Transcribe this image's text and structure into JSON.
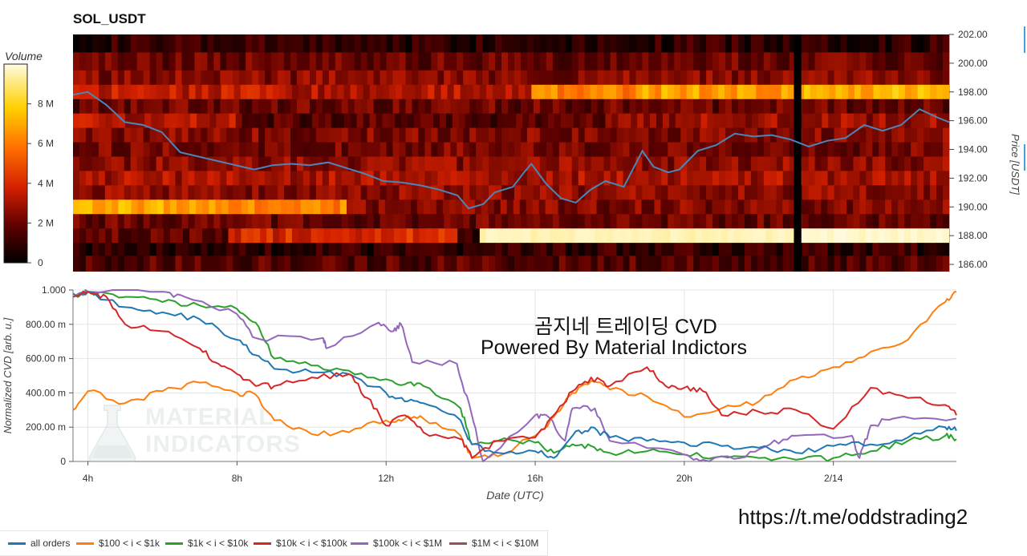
{
  "header": {
    "title": "SOL_USDT"
  },
  "colorbar": {
    "title": "Volume",
    "ticks": [
      "8 M",
      "6 M",
      "4 M",
      "2 M",
      "0"
    ],
    "tick_values": [
      8,
      6,
      4,
      2,
      0
    ]
  },
  "price_axis": {
    "label": "Price [USDT]",
    "ticks": [
      "202.00",
      "200.00",
      "198.00",
      "196.00",
      "194.00",
      "192.00",
      "190.00",
      "188.00",
      "186.00"
    ],
    "tick_values": [
      202,
      200,
      198,
      196,
      194,
      192,
      190,
      188,
      186
    ]
  },
  "cvd_axis": {
    "label": "Normalized CVD [arb. u.]",
    "ticks": [
      "1.000",
      "800.00 m",
      "600.00 m",
      "400.00 m",
      "200.00 m",
      "0"
    ],
    "tick_values": [
      1.0,
      0.8,
      0.6,
      0.4,
      0.2,
      0
    ]
  },
  "x_axis": {
    "label": "Date (UTC)",
    "ticks": [
      "4h",
      "8h",
      "12h",
      "16h",
      "20h",
      "2/14"
    ],
    "tick_hours": [
      4,
      8,
      12,
      16,
      20,
      24
    ]
  },
  "watermark": {
    "line1": "MATERIAL",
    "line2": "INDICATORS"
  },
  "overlay": {
    "line1": "곰지네 트레이딩 CVD",
    "line2": "Powered By Material Indictors"
  },
  "link": "https://t.me/oddstrading2",
  "colors": {
    "all": "#1f77b4",
    "b100_1k": "#ff7f0e",
    "b1k_10k": "#2ca02c",
    "b10k_100k": "#d62728",
    "b100k_1m": "#9467bd",
    "b1m_10m": "#8c564b",
    "price_line": "#4a86b8"
  },
  "legend": [
    {
      "label": "all orders",
      "color": "#1f77b4"
    },
    {
      "label": "$100 < i < $1k",
      "color": "#ff7f0e"
    },
    {
      "label": "$1k < i < $10k",
      "color": "#2ca02c"
    },
    {
      "label": "$10k < i < $100k",
      "color": "#d62728"
    },
    {
      "label": "$100k < i < $1M",
      "color": "#9467bd"
    },
    {
      "label": "$1M < i < $10M",
      "color": "#8c564b"
    }
  ],
  "chart_data": [
    {
      "type": "heatmap",
      "title": "SOL_USDT",
      "xlabel": "",
      "ylabel": "Price [USDT]",
      "x_range_hours": [
        3.6,
        27.3
      ],
      "ylim": [
        185.5,
        202.0
      ],
      "colorbar": {
        "label": "Volume",
        "range": [
          0,
          10
        ]
      },
      "bands": [
        {
          "price": 201.5,
          "segments": [
            [
              3.6,
              27.3,
              1.0
            ]
          ]
        },
        {
          "price": 200.0,
          "segments": [
            [
              3.6,
              27.3,
              2.0
            ]
          ]
        },
        {
          "price": 199.0,
          "segments": [
            [
              3.6,
              27.3,
              2.5
            ]
          ]
        },
        {
          "price": 198.0,
          "segments": [
            [
              3.6,
              9.0,
              3.5
            ],
            [
              9.0,
              16.0,
              3.2
            ],
            [
              16.0,
              19.0,
              6.2
            ],
            [
              19.0,
              23.1,
              6.8
            ],
            [
              23.2,
              27.3,
              7.2
            ]
          ]
        },
        {
          "price": 197.0,
          "segments": [
            [
              3.6,
              27.3,
              2.0
            ]
          ]
        },
        {
          "price": 196.0,
          "segments": [
            [
              3.6,
              8.0,
              3.2
            ],
            [
              8.0,
              18.0,
              1.6
            ],
            [
              18.0,
              27.3,
              2.8
            ]
          ]
        },
        {
          "price": 195.0,
          "segments": [
            [
              3.6,
              27.3,
              2.4
            ]
          ]
        },
        {
          "price": 194.0,
          "segments": [
            [
              3.6,
              27.3,
              2.2
            ]
          ]
        },
        {
          "price": 193.0,
          "segments": [
            [
              3.6,
              27.3,
              2.6
            ]
          ]
        },
        {
          "price": 192.0,
          "segments": [
            [
              3.6,
              27.3,
              3.0
            ]
          ]
        },
        {
          "price": 191.0,
          "segments": [
            [
              3.6,
              27.3,
              2.6
            ]
          ]
        },
        {
          "price": 190.0,
          "segments": [
            [
              3.6,
              7.8,
              7.0
            ],
            [
              7.8,
              11.0,
              6.2
            ],
            [
              11.0,
              27.3,
              2.4
            ]
          ]
        },
        {
          "price": 189.0,
          "segments": [
            [
              3.6,
              27.3,
              2.0
            ]
          ]
        },
        {
          "price": 188.0,
          "segments": [
            [
              3.6,
              7.8,
              1.8
            ],
            [
              7.8,
              14.0,
              4.0
            ],
            [
              14.0,
              14.6,
              1.0
            ],
            [
              14.6,
              23.2,
              9.6
            ],
            [
              23.3,
              27.3,
              9.8
            ]
          ]
        },
        {
          "price": 187.0,
          "segments": [
            [
              3.6,
              27.3,
              1.0
            ]
          ]
        },
        {
          "price": 186.2,
          "segments": [
            [
              3.6,
              27.3,
              1.6
            ]
          ]
        }
      ],
      "gaps": [
        [
          23.1,
          23.3
        ]
      ],
      "series": [
        {
          "name": "",
          "x": [
            3.6,
            4.0,
            4.5,
            5.0,
            5.5,
            6.0,
            6.5,
            7.0,
            7.5,
            8.0,
            8.5,
            9.0,
            9.5,
            10.0,
            10.5,
            11.0,
            11.5,
            12.0,
            12.5,
            13.0,
            13.5,
            14.0,
            14.3,
            14.7,
            15.0,
            15.5,
            15.8,
            16.0,
            16.4,
            16.8,
            17.2,
            17.6,
            18.0,
            18.5,
            19.0,
            19.3,
            19.7,
            20.0,
            20.5,
            21.0,
            21.5,
            22.0,
            22.5,
            23.0,
            23.5,
            24.0,
            24.5,
            25.0,
            25.5,
            26.0,
            26.5,
            27.0,
            27.3
          ],
          "y": [
            197.8,
            198.0,
            197.1,
            195.9,
            195.7,
            195.2,
            193.8,
            193.5,
            193.2,
            192.9,
            192.6,
            192.9,
            193.0,
            192.9,
            193.1,
            192.7,
            192.3,
            191.8,
            191.7,
            191.5,
            191.2,
            190.8,
            189.9,
            190.2,
            191.0,
            191.4,
            192.4,
            193.0,
            191.6,
            190.6,
            190.3,
            191.2,
            191.8,
            191.4,
            193.9,
            192.8,
            192.4,
            192.6,
            193.9,
            194.3,
            195.1,
            194.9,
            195.0,
            194.7,
            194.2,
            194.6,
            194.8,
            195.7,
            195.3,
            195.7,
            196.8,
            196.2,
            195.9
          ]
        }
      ]
    },
    {
      "type": "line",
      "title": "",
      "xlabel": "Date (UTC)",
      "ylabel": "Normalized CVD [arb. u.]",
      "x_range_hours": [
        3.6,
        27.3
      ],
      "ylim": [
        0,
        1.0
      ],
      "series": [
        {
          "name": "all orders",
          "x": [
            3.6,
            4.0,
            5.0,
            6.0,
            7.0,
            8.0,
            8.5,
            9.0,
            10.0,
            11.0,
            12.0,
            12.5,
            13.0,
            14.0,
            14.3,
            15.0,
            16.0,
            16.5,
            17.0,
            17.5,
            18.0,
            19.0,
            20.0,
            21.0,
            22.0,
            23.0,
            24.0,
            25.0,
            26.0,
            27.0,
            27.3
          ],
          "y": [
            0.98,
            0.99,
            0.9,
            0.87,
            0.83,
            0.71,
            0.62,
            0.54,
            0.52,
            0.51,
            0.4,
            0.35,
            0.34,
            0.24,
            0.1,
            0.05,
            0.06,
            0.02,
            0.15,
            0.2,
            0.14,
            0.12,
            0.11,
            0.09,
            0.08,
            0.05,
            0.09,
            0.1,
            0.14,
            0.2,
            0.18
          ]
        },
        {
          "name": "$100 < i < $1k",
          "x": [
            3.6,
            4.0,
            5.0,
            6.0,
            7.0,
            8.0,
            8.5,
            9.0,
            10.0,
            11.0,
            12.0,
            12.5,
            13.0,
            14.0,
            14.3,
            15.0,
            16.0,
            16.5,
            17.0,
            17.5,
            18.0,
            19.0,
            20.0,
            21.0,
            22.0,
            23.0,
            24.0,
            25.0,
            26.0,
            27.0,
            27.3
          ],
          "y": [
            0.3,
            0.41,
            0.34,
            0.41,
            0.46,
            0.4,
            0.39,
            0.24,
            0.16,
            0.17,
            0.24,
            0.25,
            0.25,
            0.15,
            0.02,
            0.03,
            0.15,
            0.26,
            0.4,
            0.47,
            0.42,
            0.38,
            0.26,
            0.31,
            0.35,
            0.48,
            0.55,
            0.64,
            0.71,
            0.93,
            0.99
          ]
        },
        {
          "name": "$1k < i < $10k",
          "x": [
            3.6,
            4.0,
            5.0,
            6.0,
            7.0,
            8.0,
            8.5,
            9.0,
            10.0,
            11.0,
            12.0,
            12.5,
            13.0,
            14.0,
            14.3,
            15.0,
            16.0,
            16.5,
            17.0,
            17.5,
            18.0,
            19.0,
            20.0,
            21.0,
            22.0,
            23.0,
            24.0,
            25.0,
            26.0,
            27.0,
            27.3
          ],
          "y": [
            0.96,
            0.99,
            0.96,
            0.93,
            0.91,
            0.89,
            0.81,
            0.6,
            0.56,
            0.53,
            0.48,
            0.45,
            0.44,
            0.31,
            0.1,
            0.12,
            0.11,
            0.05,
            0.1,
            0.09,
            0.05,
            0.06,
            0.04,
            0.03,
            0.02,
            0.01,
            0.02,
            0.06,
            0.12,
            0.15,
            0.13
          ]
        },
        {
          "name": "$10k < i < $100k",
          "x": [
            3.6,
            4.0,
            4.5,
            5.0,
            6.0,
            7.0,
            7.5,
            8.0,
            8.5,
            9.0,
            10.0,
            11.0,
            11.5,
            12.0,
            12.5,
            13.0,
            14.0,
            14.3,
            15.0,
            16.0,
            16.5,
            17.0,
            17.5,
            18.0,
            19.0,
            19.5,
            20.0,
            20.5,
            21.0,
            22.0,
            23.0,
            24.0,
            25.0,
            26.0,
            27.0,
            27.3
          ],
          "y": [
            0.96,
            0.99,
            0.96,
            0.8,
            0.76,
            0.66,
            0.57,
            0.51,
            0.44,
            0.44,
            0.49,
            0.51,
            0.37,
            0.21,
            0.27,
            0.17,
            0.13,
            0.02,
            0.12,
            0.14,
            0.27,
            0.41,
            0.49,
            0.44,
            0.55,
            0.44,
            0.43,
            0.41,
            0.27,
            0.29,
            0.3,
            0.19,
            0.43,
            0.37,
            0.33,
            0.27
          ]
        },
        {
          "name": "$100k < i < $1M",
          "x": [
            3.6,
            4.0,
            6.0,
            6.6,
            8.0,
            8.5,
            10.3,
            10.4,
            11.8,
            12.2,
            12.4,
            12.7,
            13.9,
            14.3,
            14.6,
            16.0,
            16.3,
            16.8,
            17.0,
            17.6,
            18.0,
            20.0,
            20.5,
            21.5,
            22.3,
            23.0,
            24.5,
            24.7,
            25.0,
            25.6,
            27.3
          ],
          "y": [
            0.96,
            0.99,
            0.99,
            0.96,
            0.86,
            0.72,
            0.72,
            0.66,
            0.81,
            0.76,
            0.8,
            0.58,
            0.57,
            0.27,
            0.0,
            0.27,
            0.27,
            0.12,
            0.31,
            0.31,
            0.12,
            0.04,
            0.01,
            0.02,
            0.1,
            0.15,
            0.15,
            0.02,
            0.21,
            0.25,
            0.25
          ]
        },
        {
          "name": "$1M < i < $10M",
          "x": [],
          "y": []
        }
      ]
    }
  ]
}
